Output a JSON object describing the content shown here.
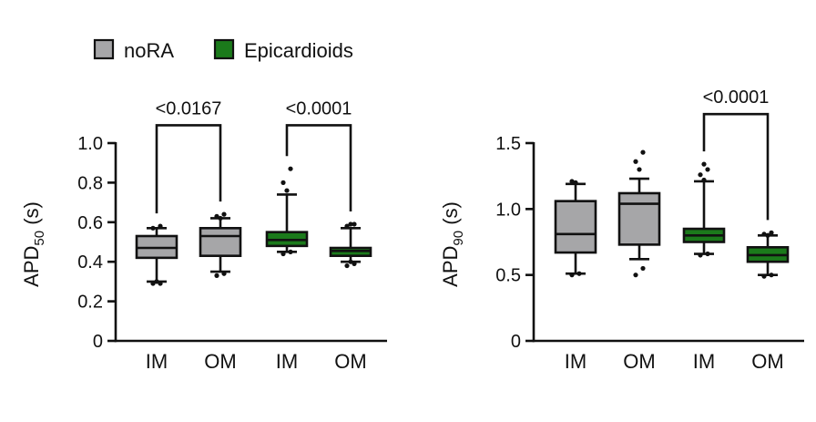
{
  "legend": {
    "items": [
      {
        "label": "noRA",
        "color": "#a6a6a8"
      },
      {
        "label": "Epicardioids",
        "color": "#1b7a1b"
      }
    ]
  },
  "chart_data": [
    {
      "type": "box",
      "ylabel_main": "APD",
      "ylabel_sub": "50",
      "ylabel_unit": " (s)",
      "ylim": [
        0,
        1.0
      ],
      "yticks": [
        0,
        0.2,
        0.4,
        0.6,
        0.8,
        1.0
      ],
      "ytick_labels": [
        "0",
        "0.2",
        "0.4",
        "0.6",
        "0.8",
        "1.0"
      ],
      "categories": [
        "IM",
        "OM",
        "IM",
        "OM"
      ],
      "groups": [
        "noRA",
        "noRA",
        "Epicardioids",
        "Epicardioids"
      ],
      "boxes": [
        {
          "whisker_low": 0.3,
          "q1": 0.42,
          "median": 0.47,
          "q3": 0.53,
          "whisker_high": 0.57,
          "outliers": [
            0.29,
            0.29,
            0.3,
            0.57,
            0.58
          ]
        },
        {
          "whisker_low": 0.35,
          "q1": 0.43,
          "median": 0.53,
          "q3": 0.57,
          "whisker_high": 0.62,
          "outliers": [
            0.33,
            0.34,
            0.62,
            0.63,
            0.64
          ]
        },
        {
          "whisker_low": 0.45,
          "q1": 0.48,
          "median": 0.51,
          "q3": 0.55,
          "whisker_high": 0.74,
          "outliers": [
            0.44,
            0.45,
            0.76,
            0.8,
            0.87
          ]
        },
        {
          "whisker_low": 0.4,
          "q1": 0.43,
          "median": 0.455,
          "q3": 0.47,
          "whisker_high": 0.57,
          "outliers": [
            0.38,
            0.39,
            0.4,
            0.58,
            0.59,
            0.59
          ]
        }
      ],
      "comparisons": [
        {
          "from": 0,
          "to": 1,
          "label": "<0.0167",
          "y": 1.09
        },
        {
          "from": 2,
          "to": 3,
          "label": "<0.0001",
          "y": 1.09
        }
      ]
    },
    {
      "type": "box",
      "ylabel_main": "APD",
      "ylabel_sub": "90",
      "ylabel_unit": " (s)",
      "ylim": [
        0,
        1.5
      ],
      "yticks": [
        0,
        0.5,
        1.0,
        1.5
      ],
      "ytick_labels": [
        "0",
        "0.5",
        "1.0",
        "1.5"
      ],
      "categories": [
        "IM",
        "OM",
        "IM",
        "OM"
      ],
      "groups": [
        "noRA",
        "noRA",
        "Epicardioids",
        "Epicardioids"
      ],
      "boxes": [
        {
          "whisker_low": 0.51,
          "q1": 0.67,
          "median": 0.81,
          "q3": 1.06,
          "whisker_high": 1.19,
          "outliers": [
            0.5,
            0.51,
            1.2,
            1.21
          ]
        },
        {
          "whisker_low": 0.62,
          "q1": 0.73,
          "median": 1.04,
          "q3": 1.12,
          "whisker_high": 1.23,
          "outliers": [
            0.5,
            0.55,
            1.3,
            1.36,
            1.43
          ]
        },
        {
          "whisker_low": 0.66,
          "q1": 0.75,
          "median": 0.8,
          "q3": 0.85,
          "whisker_high": 1.21,
          "outliers": [
            0.65,
            0.66,
            1.22,
            1.26,
            1.3,
            1.34
          ]
        },
        {
          "whisker_low": 0.5,
          "q1": 0.6,
          "median": 0.65,
          "q3": 0.71,
          "whisker_high": 0.8,
          "outliers": [
            0.49,
            0.5,
            0.8,
            0.81,
            0.82
          ]
        }
      ],
      "comparisons": [
        {
          "from": 2,
          "to": 3,
          "label": "<0.0001",
          "y": 1.72
        }
      ]
    }
  ]
}
